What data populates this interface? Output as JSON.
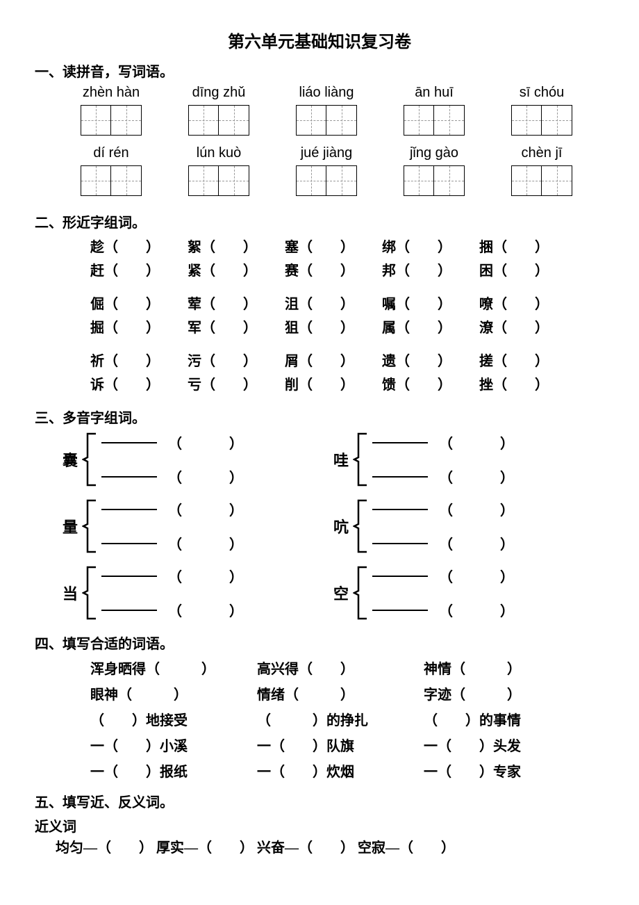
{
  "title": "第六单元基础知识复习卷",
  "section1": {
    "header": "一、读拼音，写词语。",
    "row1": [
      "zhèn hàn",
      "dīng zhǔ",
      "liáo liàng",
      "ān huī",
      "sī chóu"
    ],
    "row2": [
      "dí rén",
      "lún kuò",
      "jué jiàng",
      "jǐng gào",
      "chèn jī"
    ]
  },
  "section2": {
    "header": "二、形近字组词。",
    "groups": [
      [
        [
          "趁",
          "絮",
          "塞",
          "绑",
          "捆"
        ],
        [
          "赶",
          "紧",
          "赛",
          "邦",
          "困"
        ]
      ],
      [
        [
          "倔",
          "荤",
          "沮",
          "嘱",
          "嘹"
        ],
        [
          "掘",
          "军",
          "狙",
          "属",
          "潦"
        ]
      ],
      [
        [
          "祈",
          "污",
          "屑",
          "遗",
          "搓"
        ],
        [
          "诉",
          "亏",
          "削",
          "馈",
          "挫"
        ]
      ]
    ]
  },
  "section3": {
    "header": "三、多音字组词。",
    "rows": [
      [
        "囊",
        "哇"
      ],
      [
        "量",
        "吭"
      ],
      [
        "当",
        "空"
      ]
    ]
  },
  "section4": {
    "header": "四、填写合适的词语。",
    "lines": [
      [
        "浑身晒得（　　　）",
        "高兴得（　　）",
        "神情（　　　）"
      ],
      [
        "眼神（　　　）",
        "情绪（　　　）",
        "字迹（　　　）"
      ],
      [
        "（　　）地接受",
        "（　　　）的挣扎",
        "（　　）的事情"
      ],
      [
        "一（　　）小溪",
        "一（　　）队旗",
        "一（　　）头发"
      ],
      [
        "一（　　）报纸",
        "一（　　）炊烟",
        "一（　　）专家"
      ]
    ]
  },
  "section5": {
    "header": "五、填写近、反义词。",
    "subheader": "近义词",
    "items": [
      "均匀—（　　）",
      "厚实—（　　）",
      "兴奋—（　　）",
      "空寂—（　　）"
    ]
  }
}
